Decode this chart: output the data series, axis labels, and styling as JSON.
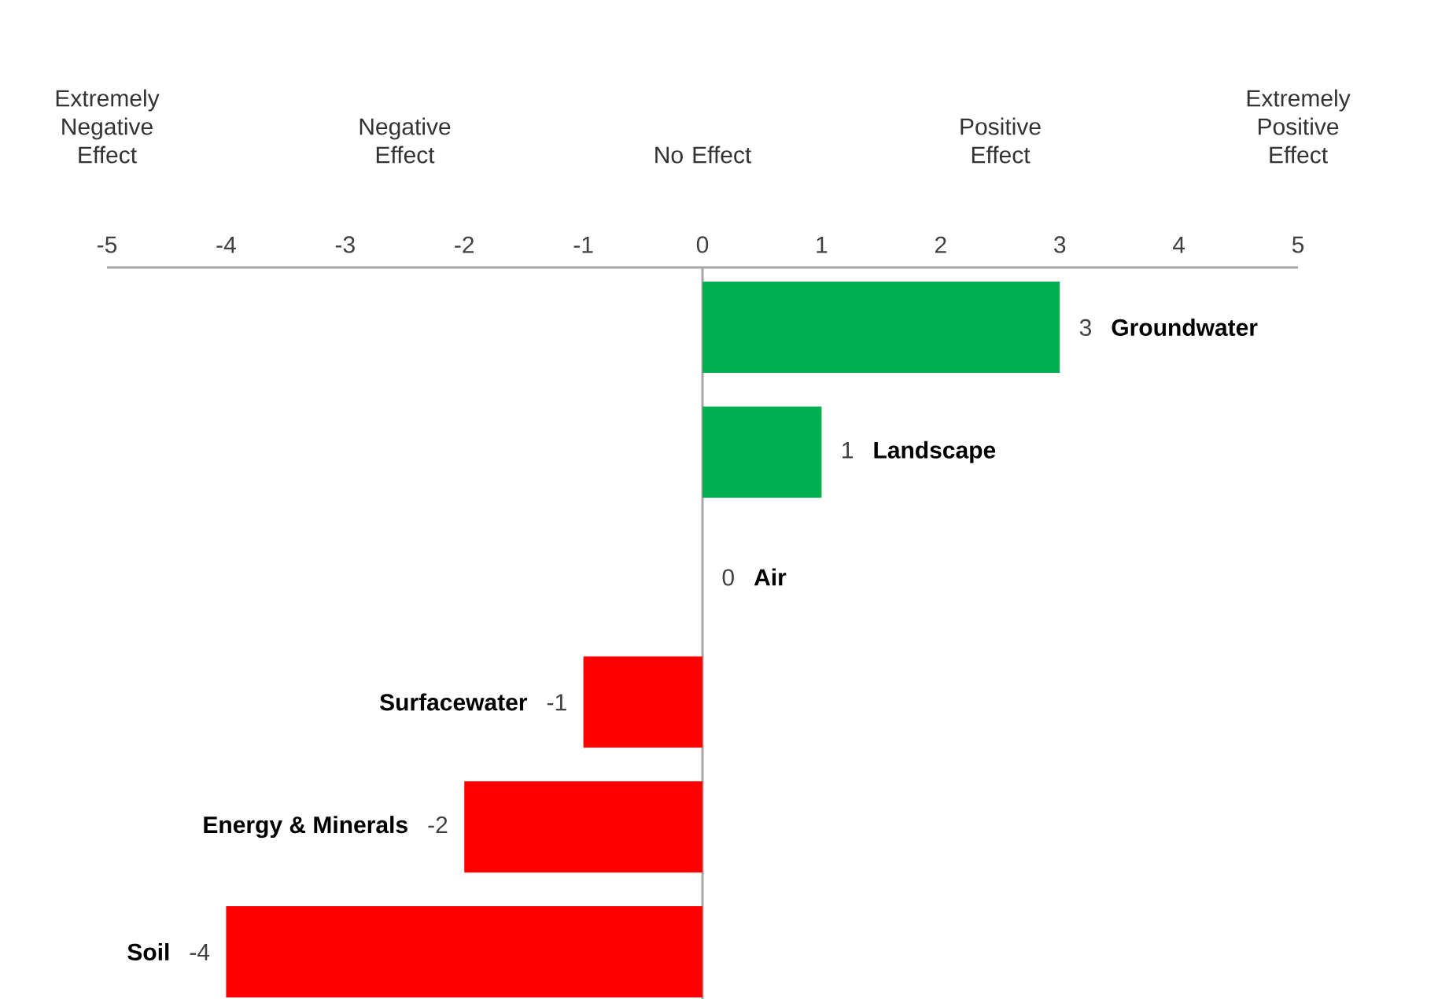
{
  "chart_data": {
    "type": "bar",
    "orientation": "horizontal",
    "categories": [
      "Groundwater",
      "Landscape",
      "Air",
      "Surfacewater",
      "Energy & Minerals",
      "Soil"
    ],
    "values": [
      3,
      1,
      0,
      -1,
      -2,
      -4
    ],
    "colors": [
      "#00b050",
      "#00b050",
      "#00b050",
      "#ff0000",
      "#ff0000",
      "#ff0000"
    ],
    "xlim": [
      -5,
      5
    ],
    "xticks": [
      -5,
      -4,
      -3,
      -2,
      -1,
      0,
      1,
      2,
      3,
      4,
      5
    ],
    "annotations": [
      "Extremely Negative Effect",
      "Negative Effect",
      "No Effect",
      "Positive Effect",
      "Extremely Positive Effect"
    ],
    "data_labels": true
  }
}
